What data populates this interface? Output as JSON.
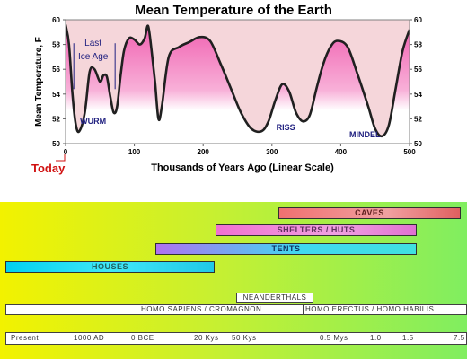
{
  "chart_data": {
    "type": "area",
    "title": "Mean Temperature of the Earth",
    "xlabel": "Thousands of Years Ago  (Linear Scale)",
    "ylabel": "Mean Temperature, F",
    "xlim": [
      0,
      500
    ],
    "ylim": [
      50,
      60
    ],
    "x_ticks": [
      "0",
      "100",
      "200",
      "300",
      "400",
      "500"
    ],
    "y_ticks": [
      "50",
      "52",
      "54",
      "56",
      "58",
      "60"
    ],
    "x": [
      0,
      5,
      10,
      15,
      20,
      28,
      35,
      42,
      50,
      55,
      60,
      65,
      70,
      75,
      80,
      85,
      92,
      100,
      108,
      115,
      120,
      125,
      130,
      135,
      140,
      150,
      165,
      180,
      195,
      210,
      225,
      240,
      255,
      270,
      285,
      295,
      305,
      315,
      325,
      335,
      345,
      355,
      365,
      375,
      385,
      395,
      410,
      425,
      440,
      450,
      460,
      470,
      480,
      490,
      500
    ],
    "y": [
      59.6,
      58.0,
      54.0,
      51.5,
      51.0,
      52.5,
      55.8,
      56.0,
      55.0,
      55.5,
      55.4,
      53.8,
      52.5,
      53.0,
      55.5,
      57.5,
      58.5,
      58.4,
      58.0,
      58.5,
      59.5,
      57.5,
      55.0,
      52.0,
      53.0,
      57.0,
      57.8,
      58.2,
      58.6,
      58.3,
      56.5,
      54.5,
      52.5,
      51.2,
      51.0,
      51.8,
      53.5,
      54.8,
      54.2,
      52.5,
      51.8,
      52.3,
      54.5,
      56.5,
      57.8,
      58.3,
      57.8,
      55.5,
      53.0,
      51.2,
      50.6,
      51.5,
      54.5,
      57.5,
      59.2
    ],
    "annotations": [
      {
        "text": "Last",
        "x": 40,
        "y": 57.9
      },
      {
        "text": "Ice Age",
        "x": 40,
        "y": 56.8
      },
      {
        "text": "WURM",
        "x": 40,
        "y": 51.6
      },
      {
        "text": "RISS",
        "x": 320,
        "y": 51.1
      },
      {
        "text": "MINDEL",
        "x": 435,
        "y": 50.5
      }
    ],
    "today_label": "Today",
    "colors": {
      "fill_top": "#f060b0",
      "fill_light": "#f5d6da",
      "line": "#202020",
      "band_light": "#ffffff"
    }
  },
  "timeline": {
    "bars": [
      {
        "key": "caves",
        "label": "CAVES"
      },
      {
        "key": "shelters",
        "label": "SHELTERS / HUTS"
      },
      {
        "key": "tents",
        "label": "TENTS"
      },
      {
        "key": "houses",
        "label": "HOUSES"
      }
    ],
    "neanderthals": "NEANDERTHALS",
    "sapiens": "HOMO SAPIENS / CROMAGNON",
    "erectus": "HOMO ERECTUS / HOMO HABILIS",
    "scale": [
      "Present",
      "1000 AD",
      "0 BCE",
      "20 Kys",
      "50 Kys",
      "0.5 Mys",
      "1.0",
      "1.5",
      "7.5"
    ]
  }
}
